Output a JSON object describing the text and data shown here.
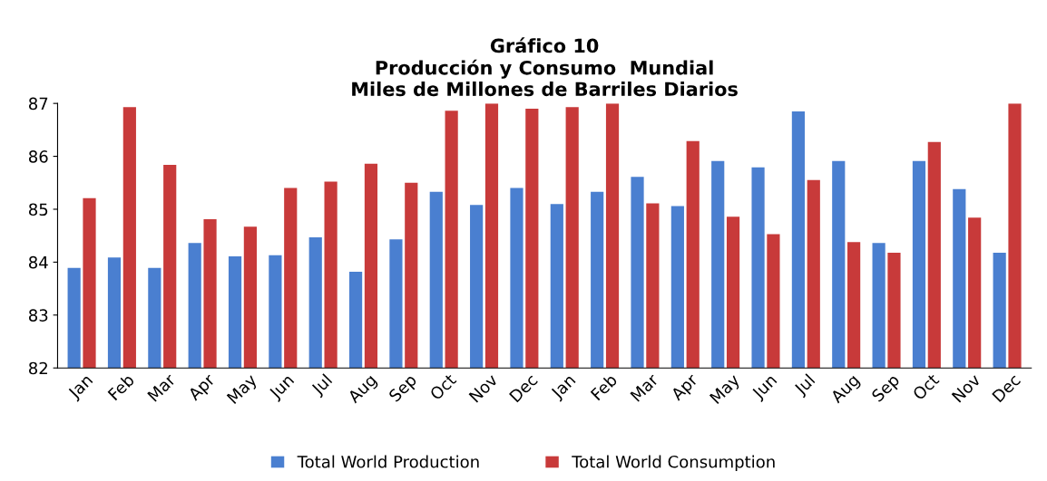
{
  "chart_data": {
    "type": "bar",
    "title": "Gráfico 10\nProducción y Consumo  Mundial\nMiles de Millones de Barriles Diarios",
    "categories": [
      "Jan",
      "Feb",
      "Mar",
      "Apr",
      "May",
      "Jun",
      "Jul",
      "Aug",
      "Sep",
      "Oct",
      "Nov",
      "Dec",
      "Jan",
      "Feb",
      "Mar",
      "Apr",
      "May",
      "Jun",
      "Jul",
      "Aug",
      "Sep",
      "Oct",
      "Nov",
      "Dec"
    ],
    "series": [
      {
        "name": "Total World Production",
        "color": "#4a7fd0",
        "values": [
          83.89,
          84.09,
          83.89,
          84.36,
          84.11,
          84.13,
          84.47,
          83.82,
          84.43,
          85.33,
          85.08,
          85.4,
          85.1,
          85.33,
          85.61,
          85.06,
          85.91,
          85.79,
          86.85,
          85.91,
          84.36,
          85.91,
          85.38,
          84.18
        ]
      },
      {
        "name": "Total World Consumption",
        "color": "#c83a3a",
        "values": [
          85.21,
          86.93,
          85.84,
          84.81,
          84.67,
          85.4,
          85.52,
          85.86,
          85.5,
          86.86,
          87.0,
          86.9,
          86.93,
          87.0,
          85.11,
          86.29,
          84.86,
          84.53,
          85.55,
          84.38,
          84.18,
          86.27,
          84.84,
          87.0
        ]
      }
    ],
    "ylim": [
      82,
      87
    ],
    "yticks": [
      82,
      83,
      84,
      85,
      86,
      87
    ],
    "grid": false,
    "legend": "bottom"
  }
}
